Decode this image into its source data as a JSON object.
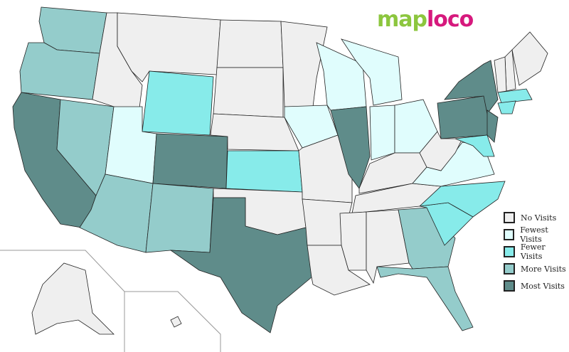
{
  "logo": {
    "part1": "map",
    "part2": "loco"
  },
  "legend": [
    {
      "key": "none",
      "label": "No Visits",
      "color": "#efefef"
    },
    {
      "key": "fewest",
      "label": "Fewest Visits",
      "color": "#e0fdfd"
    },
    {
      "key": "fewer",
      "label": "Fewer Visits",
      "color": "#87ebea"
    },
    {
      "key": "more",
      "label": "More Visits",
      "color": "#94cccb"
    },
    {
      "key": "most",
      "label": "Most Visits",
      "color": "#5f8c8a"
    }
  ],
  "states": {
    "WA": "more",
    "OR": "more",
    "CA": "most",
    "NV": "more",
    "ID": "none",
    "MT": "none",
    "WY": "fewer",
    "UT": "fewest",
    "CO": "most",
    "AZ": "more",
    "NM": "more",
    "ND": "none",
    "SD": "none",
    "NE": "none",
    "KS": "fewer",
    "OK": "none",
    "TX": "most",
    "MN": "none",
    "IA": "fewest",
    "MO": "none",
    "AR": "none",
    "LA": "none",
    "WI": "fewest",
    "IL": "most",
    "MI": "fewest",
    "IN": "fewest",
    "OH": "fewest",
    "KY": "none",
    "TN": "none",
    "MS": "none",
    "AL": "none",
    "GA": "more",
    "FL": "more",
    "SC": "fewer",
    "NC": "fewer",
    "VA": "fewest",
    "WV": "none",
    "PA": "most",
    "NY": "most",
    "NJ": "most",
    "MD": "fewer",
    "ME": "none",
    "NH": "none",
    "VT": "none",
    "MA": "fewer",
    "CT": "fewer",
    "AK": "none",
    "HI": "none"
  }
}
